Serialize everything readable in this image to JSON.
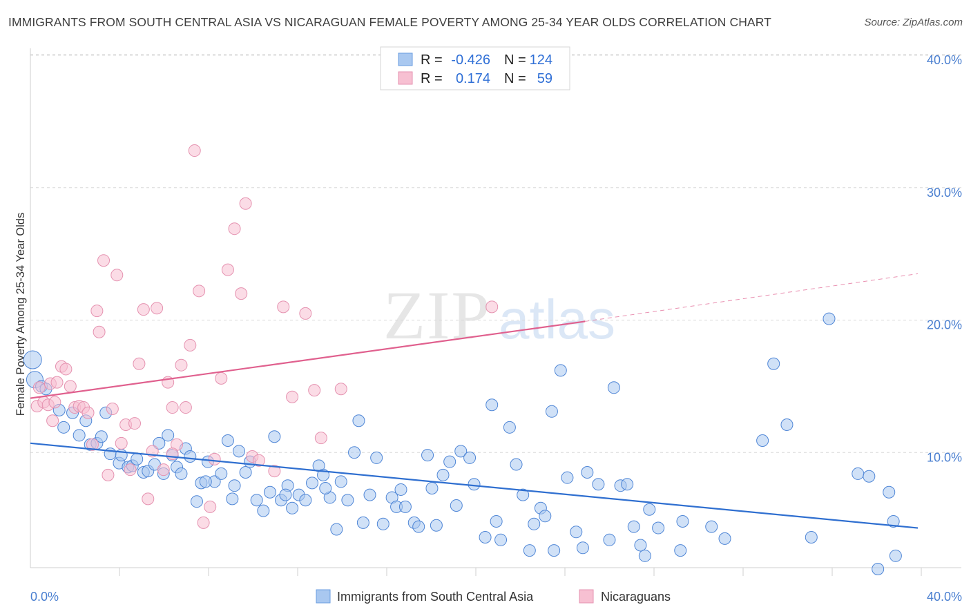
{
  "header": {
    "title": "IMMIGRANTS FROM SOUTH CENTRAL ASIA VS NICARAGUAN FEMALE POVERTY AMONG 25-34 YEAR OLDS CORRELATION CHART",
    "source": "Source: ZipAtlas.com"
  },
  "watermark": {
    "zip": "ZIP",
    "atlas": "atlas"
  },
  "stats_legend": {
    "rows": [
      {
        "r_label": "R =",
        "r_value": "-0.426",
        "n_label": "N =",
        "n_value": "124",
        "color": "#7aaee8"
      },
      {
        "r_label": "R =",
        "r_value": "0.174",
        "n_label": "N =",
        "n_value": "59",
        "color": "#f0a0bc"
      }
    ]
  },
  "colors": {
    "blue_fill": "#a9c8f0",
    "blue_stroke": "#4f86d6",
    "blue_line": "#2f6fd0",
    "pink_fill": "#f7c0d2",
    "pink_stroke": "#e592b0",
    "pink_line": "#e0608e",
    "grid": "#d8d8d8",
    "tick_text": "#4a7fd0"
  },
  "chart_data": {
    "type": "scatter",
    "title": "IMMIGRANTS FROM SOUTH CENTRAL ASIA VS NICARAGUAN FEMALE POVERTY AMONG 25-34 YEAR OLDS CORRELATION CHART",
    "xlabel": "",
    "ylabel": "Female Poverty Among 25-34 Year Olds",
    "xlim": [
      0,
      40
    ],
    "ylim": [
      0,
      40
    ],
    "x_tick_labels": [
      "0.0%",
      "40.0%"
    ],
    "y_tick_labels": [
      "10.0%",
      "20.0%",
      "30.0%",
      "40.0%"
    ],
    "y_ticks": [
      10,
      20,
      30,
      40
    ],
    "grid": true,
    "legend_position": "bottom",
    "series": [
      {
        "name": "Immigrants from South Central Asia",
        "color": "#4f86d6",
        "trend": {
          "x": [
            0,
            40
          ],
          "y": [
            10.7,
            4.3
          ]
        },
        "points": [
          [
            0.1,
            17.0
          ],
          [
            0.2,
            15.5
          ],
          [
            0.5,
            15.0
          ],
          [
            0.7,
            14.8
          ],
          [
            1.3,
            13.2
          ],
          [
            1.5,
            11.9
          ],
          [
            1.9,
            13.0
          ],
          [
            2.2,
            11.3
          ],
          [
            2.5,
            12.4
          ],
          [
            2.7,
            10.6
          ],
          [
            3.0,
            10.7
          ],
          [
            3.2,
            11.2
          ],
          [
            3.4,
            13.0
          ],
          [
            3.6,
            9.9
          ],
          [
            4.0,
            9.2
          ],
          [
            4.1,
            9.8
          ],
          [
            4.4,
            8.9
          ],
          [
            4.6,
            9.0
          ],
          [
            4.8,
            9.5
          ],
          [
            5.1,
            8.5
          ],
          [
            5.3,
            8.6
          ],
          [
            5.6,
            9.1
          ],
          [
            5.8,
            10.7
          ],
          [
            6.0,
            8.4
          ],
          [
            6.2,
            11.3
          ],
          [
            6.4,
            9.8
          ],
          [
            6.6,
            8.9
          ],
          [
            6.8,
            8.4
          ],
          [
            7.0,
            10.3
          ],
          [
            7.2,
            9.7
          ],
          [
            7.5,
            6.3
          ],
          [
            7.7,
            7.7
          ],
          [
            8.0,
            9.3
          ],
          [
            8.3,
            7.8
          ],
          [
            8.6,
            8.4
          ],
          [
            8.9,
            10.9
          ],
          [
            9.2,
            7.5
          ],
          [
            9.4,
            10.1
          ],
          [
            9.7,
            8.5
          ],
          [
            9.9,
            9.3
          ],
          [
            10.2,
            6.4
          ],
          [
            10.5,
            5.6
          ],
          [
            10.8,
            7.0
          ],
          [
            11.0,
            11.2
          ],
          [
            11.3,
            6.4
          ],
          [
            11.6,
            7.5
          ],
          [
            11.8,
            5.8
          ],
          [
            12.1,
            6.8
          ],
          [
            12.4,
            6.4
          ],
          [
            12.7,
            7.7
          ],
          [
            13.0,
            9.0
          ],
          [
            13.2,
            8.3
          ],
          [
            13.5,
            6.6
          ],
          [
            13.8,
            4.2
          ],
          [
            14.0,
            7.8
          ],
          [
            14.3,
            6.4
          ],
          [
            14.6,
            10.0
          ],
          [
            14.8,
            12.4
          ],
          [
            15.0,
            4.7
          ],
          [
            15.3,
            6.8
          ],
          [
            15.6,
            9.6
          ],
          [
            15.9,
            4.6
          ],
          [
            16.3,
            6.6
          ],
          [
            16.5,
            5.9
          ],
          [
            16.9,
            5.9
          ],
          [
            17.3,
            4.7
          ],
          [
            17.5,
            4.4
          ],
          [
            17.9,
            9.8
          ],
          [
            18.1,
            7.3
          ],
          [
            18.6,
            8.3
          ],
          [
            18.9,
            9.3
          ],
          [
            19.2,
            6.0
          ],
          [
            19.4,
            10.1
          ],
          [
            19.8,
            9.6
          ],
          [
            20.0,
            7.6
          ],
          [
            20.5,
            3.6
          ],
          [
            20.8,
            13.6
          ],
          [
            21.0,
            4.8
          ],
          [
            21.2,
            3.4
          ],
          [
            21.6,
            11.9
          ],
          [
            21.9,
            9.1
          ],
          [
            22.2,
            6.8
          ],
          [
            22.5,
            2.6
          ],
          [
            22.7,
            4.6
          ],
          [
            23.0,
            5.8
          ],
          [
            23.2,
            5.2
          ],
          [
            23.5,
            13.1
          ],
          [
            23.6,
            2.6
          ],
          [
            23.9,
            16.2
          ],
          [
            24.2,
            8.1
          ],
          [
            24.6,
            4.0
          ],
          [
            24.9,
            2.8
          ],
          [
            25.6,
            7.6
          ],
          [
            26.1,
            3.4
          ],
          [
            26.3,
            14.9
          ],
          [
            26.6,
            7.5
          ],
          [
            26.9,
            7.6
          ],
          [
            27.2,
            4.4
          ],
          [
            27.5,
            3.0
          ],
          [
            27.7,
            2.2
          ],
          [
            27.9,
            5.7
          ],
          [
            28.3,
            4.3
          ],
          [
            29.3,
            2.6
          ],
          [
            29.4,
            4.8
          ],
          [
            30.7,
            4.4
          ],
          [
            31.3,
            3.5
          ],
          [
            33.0,
            10.9
          ],
          [
            33.5,
            16.7
          ],
          [
            34.1,
            12.1
          ],
          [
            35.2,
            3.6
          ],
          [
            36.0,
            20.1
          ],
          [
            37.3,
            8.4
          ],
          [
            37.8,
            8.2
          ],
          [
            38.2,
            1.2
          ],
          [
            38.7,
            7.0
          ],
          [
            38.9,
            4.8
          ],
          [
            39.0,
            2.2
          ],
          [
            9.1,
            6.5
          ],
          [
            11.5,
            6.8
          ],
          [
            25.1,
            8.5
          ],
          [
            18.3,
            4.5
          ],
          [
            13.3,
            7.3
          ],
          [
            16.7,
            7.2
          ],
          [
            7.9,
            7.8
          ]
        ]
      },
      {
        "name": "Nicaraguans",
        "color": "#e592b0",
        "trend": {
          "x": [
            0,
            25
          ],
          "y": [
            14.1,
            19.9
          ]
        },
        "trend_dashed": {
          "x": [
            25,
            40
          ],
          "y": [
            19.9,
            23.5
          ]
        },
        "points": [
          [
            0.3,
            13.5
          ],
          [
            0.4,
            14.9
          ],
          [
            0.6,
            13.8
          ],
          [
            0.8,
            13.6
          ],
          [
            0.9,
            15.2
          ],
          [
            1.0,
            12.4
          ],
          [
            1.1,
            13.8
          ],
          [
            1.2,
            15.3
          ],
          [
            1.4,
            16.5
          ],
          [
            1.6,
            16.3
          ],
          [
            1.8,
            15.0
          ],
          [
            2.0,
            13.4
          ],
          [
            2.2,
            13.5
          ],
          [
            2.4,
            13.4
          ],
          [
            2.6,
            13.0
          ],
          [
            2.8,
            10.6
          ],
          [
            3.0,
            20.7
          ],
          [
            3.1,
            19.1
          ],
          [
            3.3,
            24.5
          ],
          [
            3.5,
            8.3
          ],
          [
            3.7,
            13.3
          ],
          [
            3.9,
            23.4
          ],
          [
            4.1,
            10.7
          ],
          [
            4.3,
            12.1
          ],
          [
            4.5,
            8.7
          ],
          [
            4.7,
            12.2
          ],
          [
            4.9,
            16.7
          ],
          [
            5.1,
            20.8
          ],
          [
            5.3,
            6.5
          ],
          [
            5.5,
            10.1
          ],
          [
            5.7,
            20.9
          ],
          [
            6.0,
            8.7
          ],
          [
            6.2,
            15.3
          ],
          [
            6.4,
            13.4
          ],
          [
            6.6,
            10.6
          ],
          [
            6.8,
            16.6
          ],
          [
            7.0,
            13.4
          ],
          [
            7.2,
            18.1
          ],
          [
            7.4,
            32.8
          ],
          [
            7.6,
            22.2
          ],
          [
            7.8,
            4.7
          ],
          [
            8.1,
            5.9
          ],
          [
            8.3,
            9.5
          ],
          [
            8.6,
            15.6
          ],
          [
            8.9,
            23.8
          ],
          [
            9.2,
            26.9
          ],
          [
            9.5,
            22.0
          ],
          [
            9.7,
            28.8
          ],
          [
            10.0,
            9.7
          ],
          [
            10.3,
            9.4
          ],
          [
            11.0,
            8.6
          ],
          [
            11.4,
            21.0
          ],
          [
            11.8,
            14.2
          ],
          [
            12.4,
            20.5
          ],
          [
            12.8,
            14.7
          ],
          [
            13.1,
            11.1
          ],
          [
            14.0,
            14.8
          ],
          [
            6.4,
            9.9
          ],
          [
            20.8,
            21.0
          ]
        ]
      }
    ]
  },
  "bottom_legend": {
    "items": [
      {
        "label": "Immigrants from South Central Asia"
      },
      {
        "label": "Nicaraguans"
      }
    ]
  }
}
